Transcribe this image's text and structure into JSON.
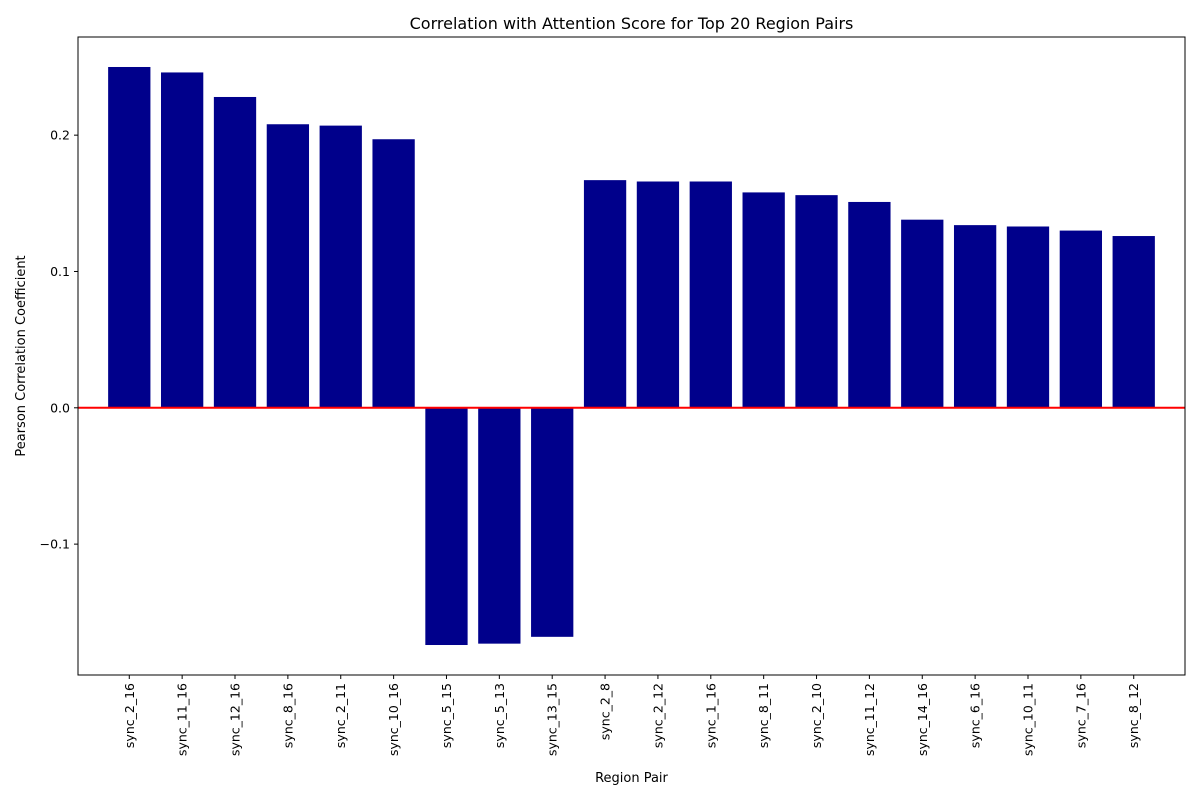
{
  "chart_data": {
    "type": "bar",
    "title": "Correlation with Attention Score for Top 20 Region Pairs",
    "xlabel": "Region Pair",
    "ylabel": "Pearson Correlation Coefficient",
    "categories": [
      "sync_2_16",
      "sync_11_16",
      "sync_12_16",
      "sync_8_16",
      "sync_2_11",
      "sync_10_16",
      "sync_5_15",
      "sync_5_13",
      "sync_13_15",
      "sync_2_8",
      "sync_2_12",
      "sync_1_16",
      "sync_8_11",
      "sync_2_10",
      "sync_11_12",
      "sync_14_16",
      "sync_6_16",
      "sync_10_11",
      "sync_7_16",
      "sync_8_12"
    ],
    "values": [
      0.25,
      0.246,
      0.228,
      0.208,
      0.207,
      0.197,
      -0.174,
      -0.173,
      -0.168,
      0.167,
      0.166,
      0.166,
      0.158,
      0.156,
      0.151,
      0.138,
      0.134,
      0.133,
      0.13,
      0.126
    ],
    "ylim": [
      -0.196,
      0.272
    ],
    "xlim": [
      -0.97,
      19.97
    ],
    "yticks": [
      -0.1,
      0.0,
      0.1,
      0.2
    ],
    "ytick_labels": [
      "−0.1",
      "0.0",
      "0.1",
      "0.2"
    ],
    "bar_color": "#00008b",
    "zero_line_color": "#ff0000",
    "grid": false,
    "legend": "none"
  }
}
